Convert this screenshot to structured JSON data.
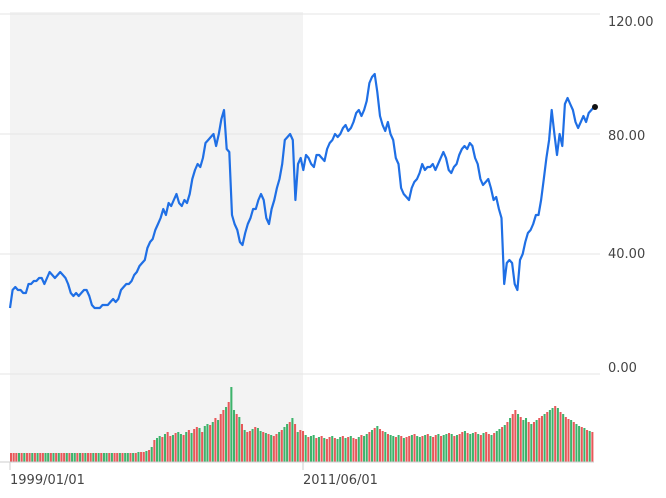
{
  "chart_data": [
    {
      "type": "line",
      "series": [
        {
          "color": "#1f6fe5",
          "values": [
            22,
            28,
            29,
            28,
            28,
            27,
            27,
            30,
            30,
            31,
            31,
            32,
            32,
            30,
            32,
            34,
            33,
            32,
            33,
            34,
            33,
            32,
            30,
            27,
            26,
            27,
            26,
            27,
            28,
            28,
            26,
            23,
            22,
            22,
            22,
            23,
            23,
            23,
            24,
            25,
            24,
            25,
            28,
            29,
            30,
            30,
            31,
            33,
            34,
            36,
            37,
            38,
            42,
            44,
            45,
            48,
            50,
            52,
            55,
            53,
            57,
            56,
            58,
            60,
            57,
            56,
            58,
            57,
            60,
            65,
            68,
            70,
            69,
            72,
            77,
            78,
            79,
            80,
            76,
            80,
            85,
            88,
            75,
            74,
            53,
            50,
            48,
            44,
            43,
            47,
            50,
            52,
            55,
            55,
            58,
            60,
            58,
            52,
            50,
            55,
            58,
            62,
            65,
            70,
            78,
            79,
            80,
            78,
            58,
            70,
            72,
            68,
            73,
            72,
            70,
            69,
            73,
            73,
            72,
            71,
            75,
            77,
            78,
            80,
            79,
            80,
            82,
            83,
            81,
            82,
            84,
            87,
            88,
            86,
            88,
            91,
            97,
            99,
            100,
            94,
            86,
            83,
            81,
            84,
            80,
            78,
            72,
            70,
            62,
            60,
            59,
            58,
            62,
            64,
            65,
            67,
            70,
            68,
            69,
            69,
            70,
            68,
            70,
            72,
            74,
            72,
            68,
            67,
            69,
            70,
            73,
            75,
            76,
            75,
            77,
            76,
            72,
            70,
            65,
            63,
            64,
            65,
            62,
            58,
            59,
            55,
            52,
            30,
            37,
            38,
            37,
            30,
            28,
            38,
            40,
            44,
            47,
            48,
            50,
            53,
            53,
            58,
            65,
            72,
            78,
            88,
            80,
            73,
            80,
            76,
            90,
            92,
            90,
            88,
            84,
            82,
            84,
            86,
            84,
            87,
            88,
            89
          ]
        }
      ],
      "x_ticks": [
        "1999/01/01",
        "2011/06/01"
      ],
      "y_ticks": [
        "120.00",
        "80.00",
        "40.00",
        "0.00"
      ],
      "ylim": [
        0,
        120
      ],
      "last_point_marker": true,
      "shaded_region": "left portion of chart up to the 2011/06/01 tick",
      "grid": true
    },
    {
      "type": "bar",
      "series": [
        {
          "colors": {
            "up": "#3db36b",
            "down": "#e8585a"
          },
          "volumes": [
            9,
            9,
            9,
            9,
            9,
            9,
            9,
            9,
            9,
            9,
            9,
            9,
            9,
            9,
            9,
            9,
            9,
            9,
            9,
            9,
            9,
            9,
            9,
            9,
            9,
            9,
            9,
            9,
            9,
            9,
            9,
            9,
            9,
            9,
            9,
            9,
            9,
            9,
            9,
            9,
            9,
            9,
            9,
            9,
            9,
            9,
            9,
            9,
            10,
            10,
            10,
            11,
            12,
            15,
            22,
            24,
            26,
            25,
            28,
            30,
            26,
            27,
            29,
            30,
            28,
            27,
            30,
            32,
            29,
            33,
            35,
            34,
            30,
            36,
            38,
            37,
            40,
            44,
            42,
            48,
            52,
            55,
            60,
            75,
            52,
            48,
            45,
            38,
            32,
            30,
            31,
            33,
            35,
            34,
            31,
            30,
            29,
            28,
            27,
            26,
            28,
            30,
            32,
            35,
            38,
            40,
            44,
            38,
            30,
            32,
            31,
            27,
            25,
            26,
            27,
            24,
            25,
            26,
            24,
            23,
            25,
            26,
            24,
            23,
            25,
            26,
            24,
            25,
            26,
            24,
            23,
            25,
            27,
            26,
            28,
            30,
            32,
            34,
            36,
            33,
            31,
            30,
            28,
            27,
            26,
            25,
            27,
            26,
            24,
            25,
            26,
            27,
            28,
            26,
            25,
            26,
            27,
            28,
            26,
            25,
            27,
            28,
            26,
            27,
            28,
            29,
            28,
            26,
            27,
            28,
            30,
            31,
            29,
            28,
            29,
            30,
            28,
            27,
            29,
            30,
            28,
            27,
            29,
            31,
            33,
            35,
            37,
            40,
            44,
            48,
            52,
            48,
            45,
            42,
            44,
            40,
            38,
            40,
            42,
            44,
            46,
            48,
            50,
            52,
            54,
            56,
            54,
            50,
            48,
            45,
            43,
            42,
            40,
            38,
            36,
            35,
            34,
            32,
            31,
            30
          ],
          "directions": [
            "d",
            "d",
            "d",
            "u",
            "d",
            "u",
            "d",
            "d",
            "u",
            "d",
            "u",
            "d",
            "d",
            "u",
            "u",
            "d",
            "u",
            "d",
            "u",
            "d",
            "d",
            "u",
            "d",
            "u",
            "u",
            "d",
            "u",
            "d",
            "u",
            "d",
            "d",
            "u",
            "d",
            "u",
            "d",
            "u",
            "u",
            "d",
            "u",
            "d",
            "d",
            "u",
            "d",
            "u",
            "u",
            "d",
            "u",
            "d",
            "u",
            "d",
            "d",
            "u",
            "d",
            "u",
            "d",
            "u",
            "u",
            "d",
            "u",
            "d",
            "d",
            "u",
            "d",
            "u",
            "u",
            "d",
            "u",
            "d",
            "u",
            "d",
            "d",
            "u",
            "d",
            "u",
            "u",
            "d",
            "u",
            "d",
            "u",
            "d",
            "d",
            "u",
            "d",
            "u",
            "u",
            "d",
            "u",
            "d",
            "u",
            "d",
            "d",
            "u",
            "d",
            "u",
            "u",
            "d",
            "u",
            "d",
            "u",
            "d",
            "d",
            "u",
            "d",
            "u",
            "u",
            "d",
            "u",
            "d",
            "u",
            "d",
            "d",
            "u",
            "d",
            "u",
            "u",
            "d",
            "u",
            "d",
            "u",
            "d",
            "d",
            "u",
            "d",
            "u",
            "u",
            "d",
            "u",
            "d",
            "u",
            "d",
            "d",
            "u",
            "d",
            "u",
            "u",
            "d",
            "u",
            "d",
            "u",
            "d",
            "d",
            "u",
            "d",
            "u",
            "u",
            "d",
            "u",
            "d",
            "u",
            "d",
            "d",
            "u",
            "d",
            "u",
            "u",
            "d",
            "u",
            "d",
            "u",
            "d",
            "d",
            "u",
            "d",
            "u",
            "u",
            "d",
            "u",
            "d",
            "u",
            "d",
            "d",
            "u",
            "d",
            "u",
            "u",
            "d",
            "u",
            "d",
            "u",
            "d",
            "d",
            "u",
            "d",
            "u",
            "u",
            "d",
            "u",
            "d",
            "u",
            "d",
            "d",
            "u",
            "d",
            "u",
            "u",
            "d",
            "u",
            "d",
            "u",
            "d",
            "d",
            "u",
            "d",
            "u",
            "u",
            "d",
            "u",
            "d",
            "u",
            "d",
            "d",
            "u",
            "d",
            "u",
            "u",
            "d",
            "u",
            "d",
            "u",
            "d",
            "d",
            "u"
          ]
        }
      ]
    }
  ]
}
